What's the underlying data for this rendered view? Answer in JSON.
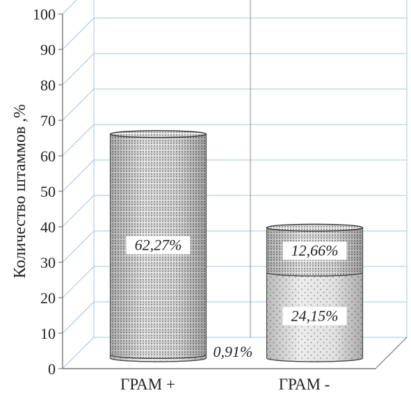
{
  "chart_data": {
    "type": "bar",
    "style": "3d-stacked-cylinder",
    "xlabel": "",
    "ylabel": "Количество  штаммов ,%",
    "ylim": [
      0,
      100
    ],
    "yticks": [
      "0",
      "10",
      "20",
      "30",
      "40",
      "50",
      "60",
      "70",
      "80",
      "90",
      "100"
    ],
    "categories": [
      "ГРАМ +",
      "ГРАМ -"
    ],
    "series": [
      {
        "values": [
          0.91,
          24.15
        ],
        "labels": [
          "0,91%",
          "24,15%"
        ],
        "pattern": "fine-dots"
      },
      {
        "values": [
          62.27,
          12.66
        ],
        "labels": [
          "62,27%",
          "12,66%"
        ],
        "pattern": "dots-grid"
      }
    ],
    "grid": true,
    "legend": "none",
    "colors": {
      "grid": "#9fc7e2",
      "bar_fill": "#e9e9e9",
      "bar_outline": "#555555",
      "axis": "#777777"
    }
  }
}
